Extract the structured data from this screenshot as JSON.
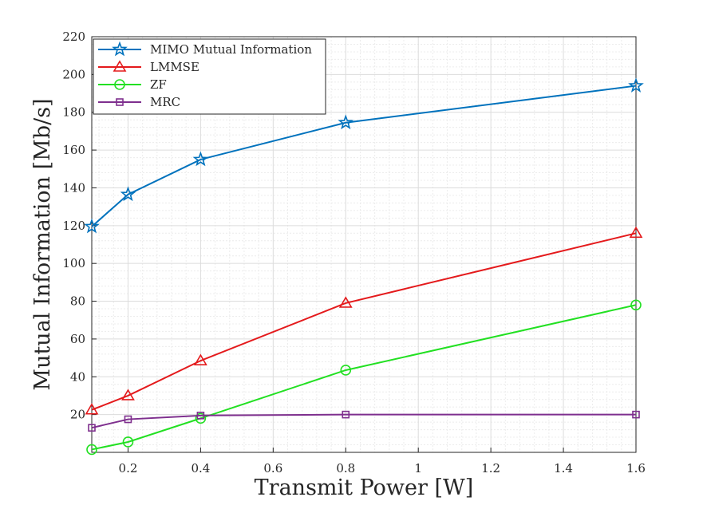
{
  "chart_data": {
    "type": "line",
    "title": "",
    "xlabel": "Transmit Power [W]",
    "ylabel": "Mutual Information [Mb/s]",
    "xlim": [
      0.1,
      1.6
    ],
    "ylim": [
      0,
      220
    ],
    "xticks": [
      0.2,
      0.4,
      0.6,
      0.8,
      1,
      1.2,
      1.4,
      1.6
    ],
    "yticks": [
      20,
      40,
      60,
      80,
      100,
      120,
      140,
      160,
      180,
      200,
      220
    ],
    "grid": true,
    "minor_grid": true,
    "legend_position": "top-left",
    "x": [
      0.1,
      0.2,
      0.4,
      0.8,
      1.6
    ],
    "series": [
      {
        "name": "MIMO Mutual Information",
        "color": "#0072BD",
        "marker": "star",
        "values": [
          119.5,
          136.5,
          155,
          174.5,
          194
        ]
      },
      {
        "name": "LMMSE",
        "color": "#E41A1C",
        "marker": "triangle",
        "values": [
          22.5,
          30,
          48.5,
          79,
          116
        ]
      },
      {
        "name": "ZF",
        "color": "#22E022",
        "marker": "circle",
        "values": [
          1.5,
          5.5,
          18,
          43.5,
          78
        ]
      },
      {
        "name": "MRC",
        "color": "#7E2F8E",
        "marker": "square",
        "values": [
          13,
          17.5,
          19.5,
          20,
          20
        ]
      }
    ]
  }
}
